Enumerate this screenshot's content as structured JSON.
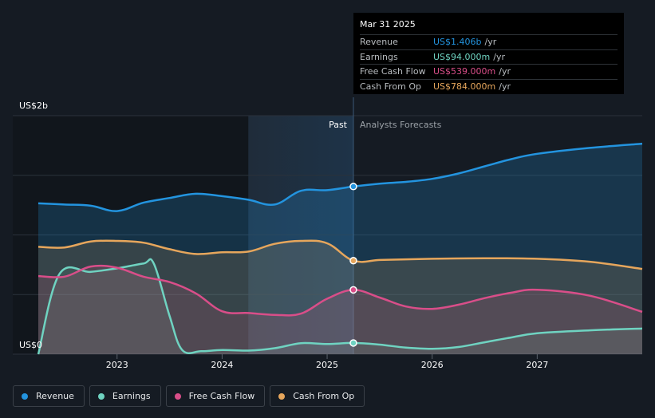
{
  "chart_data": {
    "type": "area",
    "y_axis": {
      "label_top": "US$2b",
      "label_bottom": "US$0",
      "ylim": [
        0,
        2000
      ],
      "unit": "US$ millions"
    },
    "x_axis": {
      "ticks": [
        "2023",
        "2024",
        "2025",
        "2026",
        "2027"
      ],
      "xlim": [
        2022.25,
        2028.0
      ]
    },
    "regions": {
      "past_label": "Past",
      "forecast_label": "Analysts Forecasts",
      "divider_x": 2025.25,
      "past_start": 2024.25
    },
    "series": [
      {
        "name": "Revenue",
        "color": "#2394df",
        "points": [
          [
            2022.25,
            1265
          ],
          [
            2022.5,
            1255
          ],
          [
            2022.75,
            1245
          ],
          [
            2023.0,
            1200
          ],
          [
            2023.25,
            1270
          ],
          [
            2023.5,
            1310
          ],
          [
            2023.75,
            1345
          ],
          [
            2024.0,
            1325
          ],
          [
            2024.25,
            1295
          ],
          [
            2024.5,
            1255
          ],
          [
            2024.75,
            1370
          ],
          [
            2025.0,
            1375
          ],
          [
            2025.25,
            1406
          ],
          [
            2025.5,
            1430
          ],
          [
            2025.75,
            1445
          ],
          [
            2026.0,
            1470
          ],
          [
            2026.25,
            1515
          ],
          [
            2026.5,
            1575
          ],
          [
            2026.75,
            1635
          ],
          [
            2027.0,
            1680
          ],
          [
            2027.5,
            1730
          ],
          [
            2028.0,
            1765
          ]
        ]
      },
      {
        "name": "Earnings",
        "color": "#6fd3c1",
        "points": [
          [
            2022.25,
            0
          ],
          [
            2022.45,
            670
          ],
          [
            2022.75,
            690
          ],
          [
            2023.0,
            720
          ],
          [
            2023.25,
            760
          ],
          [
            2023.35,
            760
          ],
          [
            2023.5,
            320
          ],
          [
            2023.62,
            35
          ],
          [
            2023.8,
            25
          ],
          [
            2024.0,
            35
          ],
          [
            2024.25,
            30
          ],
          [
            2024.5,
            50
          ],
          [
            2024.75,
            92
          ],
          [
            2025.0,
            85
          ],
          [
            2025.25,
            94
          ],
          [
            2025.5,
            80
          ],
          [
            2025.75,
            55
          ],
          [
            2026.0,
            45
          ],
          [
            2026.25,
            60
          ],
          [
            2026.5,
            100
          ],
          [
            2026.75,
            140
          ],
          [
            2027.0,
            175
          ],
          [
            2027.5,
            200
          ],
          [
            2028.0,
            215
          ]
        ]
      },
      {
        "name": "Free Cash Flow",
        "color": "#d94e89",
        "points": [
          [
            2022.25,
            655
          ],
          [
            2022.5,
            650
          ],
          [
            2022.75,
            735
          ],
          [
            2023.0,
            725
          ],
          [
            2023.25,
            650
          ],
          [
            2023.5,
            605
          ],
          [
            2023.75,
            510
          ],
          [
            2024.0,
            360
          ],
          [
            2024.25,
            345
          ],
          [
            2024.5,
            330
          ],
          [
            2024.75,
            340
          ],
          [
            2025.0,
            465
          ],
          [
            2025.25,
            539
          ],
          [
            2025.5,
            475
          ],
          [
            2025.75,
            400
          ],
          [
            2026.0,
            380
          ],
          [
            2026.25,
            415
          ],
          [
            2026.5,
            470
          ],
          [
            2026.75,
            515
          ],
          [
            2027.0,
            540
          ],
          [
            2027.5,
            490
          ],
          [
            2028.0,
            355
          ]
        ]
      },
      {
        "name": "Cash From Op",
        "color": "#e6a65c",
        "points": [
          [
            2022.25,
            900
          ],
          [
            2022.5,
            895
          ],
          [
            2022.75,
            945
          ],
          [
            2023.0,
            950
          ],
          [
            2023.25,
            935
          ],
          [
            2023.5,
            880
          ],
          [
            2023.75,
            840
          ],
          [
            2024.0,
            855
          ],
          [
            2024.25,
            860
          ],
          [
            2024.5,
            925
          ],
          [
            2024.75,
            950
          ],
          [
            2025.0,
            930
          ],
          [
            2025.25,
            784
          ],
          [
            2025.5,
            790
          ],
          [
            2025.75,
            795
          ],
          [
            2026.0,
            800
          ],
          [
            2026.5,
            805
          ],
          [
            2027.0,
            800
          ],
          [
            2027.5,
            775
          ],
          [
            2028.0,
            715
          ]
        ]
      }
    ]
  },
  "tooltip": {
    "date": "Mar 31 2025",
    "rows": [
      {
        "label": "Revenue",
        "value": "US$1.406b",
        "unit": "/yr",
        "color": "#2394df"
      },
      {
        "label": "Earnings",
        "value": "US$94.000m",
        "unit": "/yr",
        "color": "#6fd3c1"
      },
      {
        "label": "Free Cash Flow",
        "value": "US$539.000m",
        "unit": "/yr",
        "color": "#d94e89"
      },
      {
        "label": "Cash From Op",
        "value": "US$784.000m",
        "unit": "/yr",
        "color": "#e6a65c"
      }
    ]
  },
  "legend": [
    {
      "label": "Revenue",
      "color": "#2394df"
    },
    {
      "label": "Earnings",
      "color": "#6fd3c1"
    },
    {
      "label": "Free Cash Flow",
      "color": "#d94e89"
    },
    {
      "label": "Cash From Op",
      "color": "#e6a65c"
    }
  ]
}
